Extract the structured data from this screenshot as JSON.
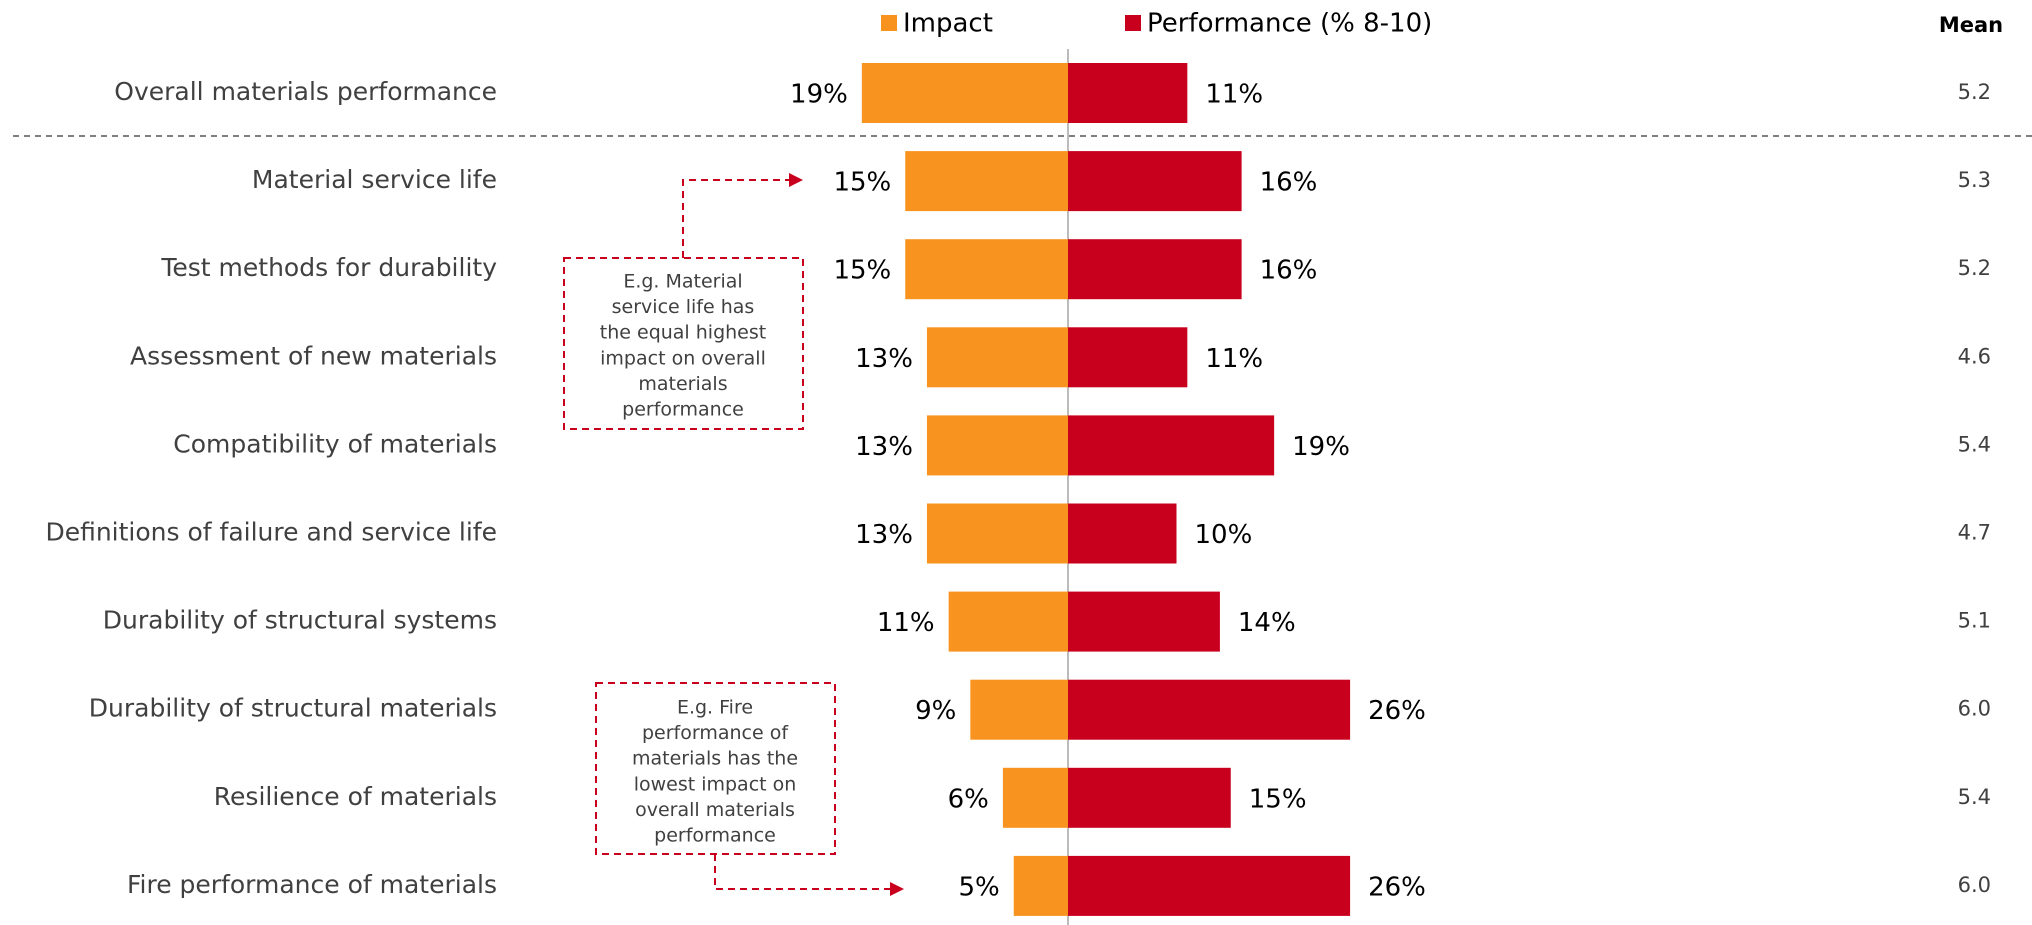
{
  "chart_data": {
    "type": "bar",
    "categories": [
      "Overall materials performance",
      "Material service life",
      "Test methods for durability",
      "Assessment of new materials",
      "Compatibility of materials",
      "Definitions of failure and service life",
      "Durability of structural systems",
      "Durability of structural materials",
      "Resilience of materials",
      "Fire performance of materials"
    ],
    "series": [
      {
        "name": "Impact",
        "color": "#f7931e",
        "values": [
          19,
          15,
          15,
          13,
          13,
          13,
          11,
          9,
          6,
          5
        ],
        "value_labels": [
          "19%",
          "15%",
          "15%",
          "13%",
          "13%",
          "13%",
          "11%",
          "9%",
          "6%",
          "5%"
        ]
      },
      {
        "name": "Performance (% 8-10)",
        "color": "#c8001e",
        "values": [
          11,
          16,
          16,
          11,
          19,
          10,
          14,
          26,
          15,
          26
        ],
        "value_labels": [
          "11%",
          "16%",
          "16%",
          "11%",
          "19%",
          "10%",
          "14%",
          "26%",
          "15%",
          "26%"
        ]
      }
    ],
    "mean": {
      "label": "Mean",
      "values": [
        5.2,
        5.3,
        5.2,
        4.6,
        5.4,
        4.7,
        5.1,
        6.0,
        5.4,
        6.0
      ],
      "value_labels": [
        "5.2",
        "5.3",
        "5.2",
        "4.6",
        "5.4",
        "4.7",
        "5.1",
        "6.0",
        "5.4",
        "6.0"
      ]
    },
    "annotations": [
      {
        "lines": [
          "E.g. Material",
          "service life has",
          "the equal highest",
          "impact on overall",
          "materials",
          "performance"
        ]
      },
      {
        "lines": [
          "E.g. Fire",
          "performance of",
          "materials has the",
          "lowest impact on",
          "overall materials",
          "performance"
        ]
      }
    ]
  }
}
